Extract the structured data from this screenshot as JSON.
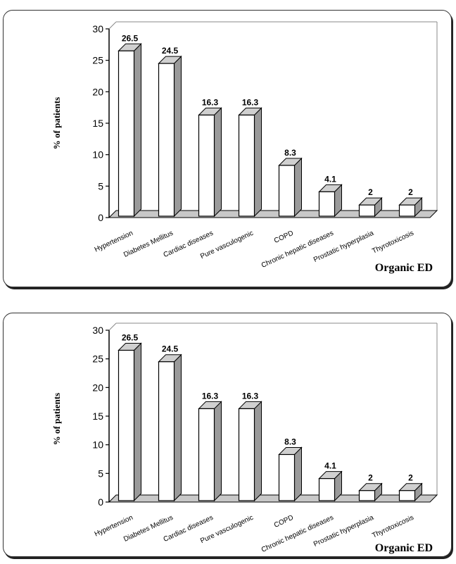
{
  "chart_data": [
    {
      "type": "bar",
      "categories": [
        "Hypertension",
        "Diabetes Mellitus",
        "Cardiac diseases",
        "Pure vasculogenic",
        "COPD",
        "Chronic hepatic diseases",
        "Prostatic hyperplasia",
        "Thyrotoxicosis"
      ],
      "values": [
        26.5,
        24.5,
        16.3,
        16.3,
        8.3,
        4.1,
        2,
        2
      ],
      "data_labels": [
        "26.5",
        "24.5",
        "16.3",
        "16.3",
        "8.3",
        "4.1",
        "2",
        "2"
      ],
      "ylabel": "% of patients",
      "annotation": "Organic ED",
      "ylim": [
        0,
        30
      ],
      "yticks": [
        "0",
        "5",
        "10",
        "15",
        "20",
        "25",
        "30"
      ],
      "style": "3d-bar",
      "colors": {
        "bar_face": "#ffffff",
        "bar_side": "#9a9a9a",
        "bar_top": "#d0d0d0",
        "floor": "#c8c8c8",
        "stroke": "#000000"
      }
    },
    {
      "type": "bar",
      "categories": [
        "Hypertension",
        "Diabetes Mellitus",
        "Cardiac diseases",
        "Pure vasculogenic",
        "COPD",
        "Chronic hepatic diseases",
        "Prostatic hyperplasia",
        "Thyrotoxicosis"
      ],
      "values": [
        26.5,
        24.5,
        16.3,
        16.3,
        8.3,
        4.1,
        2,
        2
      ],
      "data_labels": [
        "26.5",
        "24.5",
        "16.3",
        "16.3",
        "8.3",
        "4.1",
        "2",
        "2"
      ],
      "ylabel": "% of patients",
      "annotation": "Organic ED",
      "ylim": [
        0,
        30
      ],
      "yticks": [
        "0",
        "5",
        "10",
        "15",
        "20",
        "25",
        "30"
      ],
      "style": "3d-bar",
      "colors": {
        "bar_face": "#ffffff",
        "bar_side": "#9a9a9a",
        "bar_top": "#d0d0d0",
        "floor": "#c8c8c8",
        "stroke": "#000000"
      }
    }
  ]
}
